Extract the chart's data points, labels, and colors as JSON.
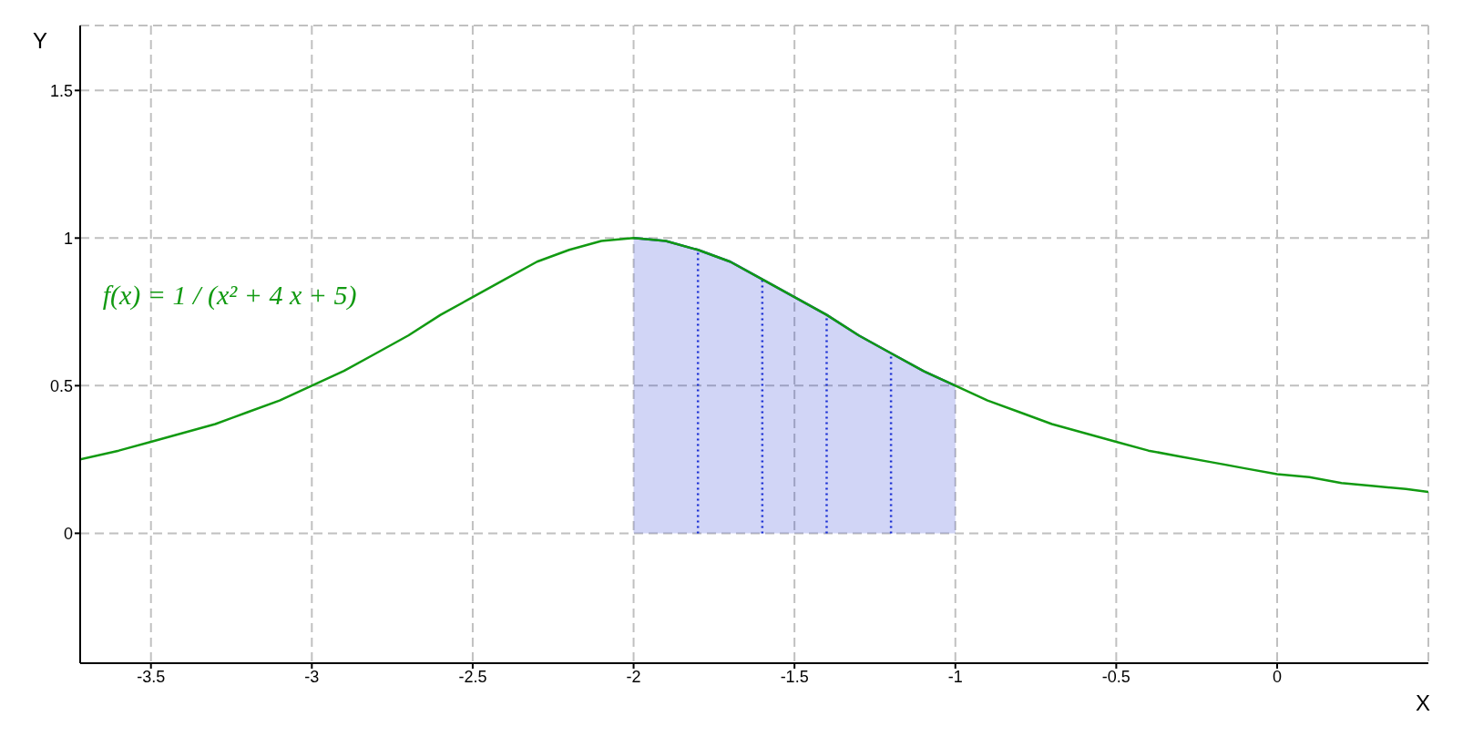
{
  "chart_data": {
    "type": "line",
    "xlabel": "X",
    "ylabel": "Y",
    "xlim": [
      -3.72,
      0.47
    ],
    "ylim": [
      -0.44,
      1.72
    ],
    "xticks": [
      -3.5,
      -3,
      -2.5,
      -2,
      -1.5,
      -1,
      -0.5,
      0
    ],
    "yticks": [
      0,
      0.5,
      1,
      1.5
    ],
    "grid": true,
    "legend": false,
    "series": [
      {
        "type": "area",
        "color": "#1a2fd4",
        "x": [
          -2,
          -1.9,
          -1.8,
          -1.7,
          -1.6,
          -1.5,
          -1.4,
          -1.3,
          -1.2,
          -1.1,
          -1
        ],
        "values": [
          1,
          0.99,
          0.96,
          0.92,
          0.86,
          0.8,
          0.74,
          0.67,
          0.61,
          0.55,
          0.5
        ]
      },
      {
        "type": "line",
        "line_style": "dotted",
        "color": "#1a2fd4",
        "x": [
          -1.8,
          -1.8
        ],
        "values": [
          0,
          0.96
        ]
      },
      {
        "type": "line",
        "line_style": "dotted",
        "color": "#1a2fd4",
        "x": [
          -1.6,
          -1.6
        ],
        "values": [
          0,
          0.86
        ]
      },
      {
        "type": "line",
        "line_style": "dotted",
        "color": "#1a2fd4",
        "x": [
          -1.4,
          -1.4
        ],
        "values": [
          0,
          0.74
        ]
      },
      {
        "type": "line",
        "line_style": "dotted",
        "color": "#1a2fd4",
        "x": [
          -1.2,
          -1.2
        ],
        "values": [
          0,
          0.61
        ]
      },
      {
        "name": "f(x) = 1 / (x² + 4 x + 5)",
        "color": "#129a12",
        "x": [
          -3.72,
          -3.6,
          -3.5,
          -3.4,
          -3.3,
          -3.2,
          -3.1,
          -3,
          -2.9,
          -2.8,
          -2.7,
          -2.6,
          -2.5,
          -2.4,
          -2.3,
          -2.2,
          -2.1,
          -2,
          -1.9,
          -1.8,
          -1.7,
          -1.6,
          -1.5,
          -1.4,
          -1.3,
          -1.2,
          -1.1,
          -1,
          -0.9,
          -0.8,
          -0.7,
          -0.6,
          -0.5,
          -0.4,
          -0.3,
          -0.2,
          -0.1,
          0,
          0.1,
          0.2,
          0.3,
          0.4,
          0.47
        ],
        "values": [
          0.25,
          0.28,
          0.31,
          0.34,
          0.37,
          0.41,
          0.45,
          0.5,
          0.55,
          0.61,
          0.67,
          0.74,
          0.8,
          0.86,
          0.92,
          0.96,
          0.99,
          1,
          0.99,
          0.96,
          0.92,
          0.86,
          0.8,
          0.74,
          0.67,
          0.61,
          0.55,
          0.5,
          0.45,
          0.41,
          0.37,
          0.34,
          0.31,
          0.28,
          0.26,
          0.24,
          0.22,
          0.2,
          0.19,
          0.17,
          0.16,
          0.15,
          0.14
        ]
      }
    ]
  }
}
